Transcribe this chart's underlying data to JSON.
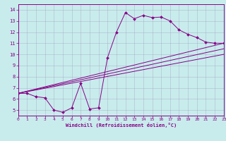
{
  "xlabel": "Windchill (Refroidissement éolien,°C)",
  "bg_color": "#c8ecec",
  "line_color": "#880088",
  "xlim": [
    0,
    23
  ],
  "ylim": [
    4.5,
    14.5
  ],
  "xticks": [
    0,
    1,
    2,
    3,
    4,
    5,
    6,
    7,
    8,
    9,
    10,
    11,
    12,
    13,
    14,
    15,
    16,
    17,
    18,
    19,
    20,
    21,
    22,
    23
  ],
  "yticks": [
    5,
    6,
    7,
    8,
    9,
    10,
    11,
    12,
    13,
    14
  ],
  "series1_x": [
    0,
    1,
    2,
    3,
    4,
    5,
    6,
    7,
    8,
    9,
    10,
    11,
    12,
    13,
    14,
    15,
    16,
    17,
    18,
    19,
    20,
    21,
    22,
    23
  ],
  "series1_y": [
    6.5,
    6.5,
    6.2,
    6.1,
    5.0,
    4.8,
    5.2,
    7.4,
    5.1,
    5.2,
    9.7,
    12.0,
    13.75,
    13.2,
    13.5,
    13.3,
    13.35,
    13.0,
    12.2,
    11.8,
    11.5,
    11.1,
    11.0,
    11.0
  ],
  "line2_x": [
    0,
    23
  ],
  "line2_y": [
    6.5,
    11.0
  ],
  "line3_x": [
    0,
    23
  ],
  "line3_y": [
    6.5,
    10.5
  ],
  "line4_x": [
    0,
    23
  ],
  "line4_y": [
    6.5,
    10.0
  ]
}
